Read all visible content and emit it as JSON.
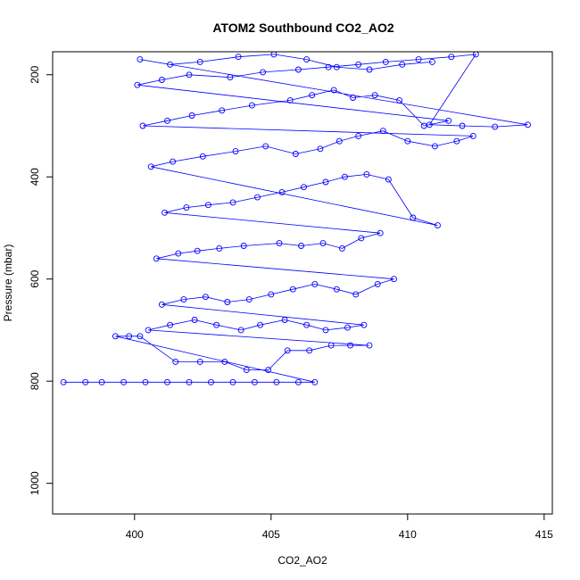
{
  "chart_data": {
    "type": "scatter",
    "title": "ATOM2 Southbound CO2_AO2",
    "xlabel": "CO2_AO2",
    "ylabel": "Pressure (mbar)",
    "xlim": [
      397,
      415.3
    ],
    "ylim": [
      1060,
      155
    ],
    "y_reversed": true,
    "x_ticks": [
      400,
      405,
      410,
      415
    ],
    "y_ticks": [
      200,
      400,
      600,
      800,
      1000
    ],
    "marker": "open-circle",
    "connected_lines": true,
    "color": "#0000ff",
    "series": [
      {
        "x": [
          397.4,
          398.2,
          398.8,
          399.6,
          400.4,
          401.2,
          402.0,
          402.8,
          403.6,
          404.4,
          405.2,
          406.0,
          406.6,
          399.3,
          399.8,
          400.2,
          401.5,
          402.4,
          403.3,
          404.1,
          404.9,
          405.6,
          406.4,
          407.2,
          407.9,
          408.6,
          400.5,
          401.3,
          402.2,
          403.0,
          403.9,
          404.6,
          405.5,
          406.3,
          407.0,
          407.8,
          408.4,
          401.0,
          401.8,
          402.6,
          403.4,
          404.2,
          405.0,
          405.8,
          406.6,
          407.4,
          408.1,
          408.9,
          409.5,
          400.8,
          401.6,
          402.3,
          403.1,
          404.0,
          405.3,
          406.1,
          406.9,
          407.6,
          408.3,
          409.0,
          401.1,
          401.9,
          402.7,
          403.6,
          404.5,
          405.4,
          406.2,
          407.0,
          407.7,
          408.5,
          409.3,
          410.2,
          411.1,
          400.6,
          401.4,
          402.5,
          403.7,
          404.8,
          405.9,
          406.8,
          407.5,
          408.2,
          409.1,
          410.0,
          411.0,
          411.8,
          412.4,
          400.3,
          401.2,
          402.1,
          403.2,
          404.3,
          405.7,
          406.5,
          407.3,
          408.0,
          408.8,
          409.7,
          410.6,
          411.5,
          400.1,
          401.0,
          402.0,
          403.5,
          404.7,
          406.0,
          407.1,
          408.2,
          409.2,
          410.4,
          411.6,
          412.5,
          410.8,
          412.0,
          413.2,
          414.4,
          400.2,
          401.3,
          402.4,
          403.8,
          405.1,
          406.3,
          407.4,
          408.6,
          409.8,
          410.9
        ],
        "y": [
          802,
          802,
          802,
          802,
          802,
          802,
          802,
          802,
          802,
          802,
          802,
          802,
          802,
          712,
          712,
          712,
          762,
          762,
          762,
          778,
          778,
          740,
          740,
          730,
          730,
          730,
          700,
          690,
          680,
          690,
          700,
          690,
          680,
          690,
          700,
          695,
          690,
          650,
          640,
          635,
          645,
          640,
          630,
          620,
          610,
          620,
          630,
          610,
          600,
          560,
          550,
          545,
          540,
          535,
          530,
          535,
          530,
          540,
          520,
          510,
          470,
          460,
          455,
          450,
          440,
          430,
          420,
          410,
          400,
          395,
          405,
          480,
          495,
          380,
          370,
          360,
          350,
          340,
          355,
          345,
          330,
          320,
          310,
          330,
          340,
          330,
          320,
          300,
          290,
          280,
          270,
          260,
          250,
          240,
          230,
          245,
          240,
          250,
          300,
          290,
          220,
          210,
          200,
          205,
          195,
          190,
          185,
          180,
          175,
          170,
          165,
          160,
          298,
          300,
          302,
          298,
          170,
          180,
          175,
          165,
          160,
          170,
          185,
          190,
          180,
          175
        ]
      }
    ]
  }
}
